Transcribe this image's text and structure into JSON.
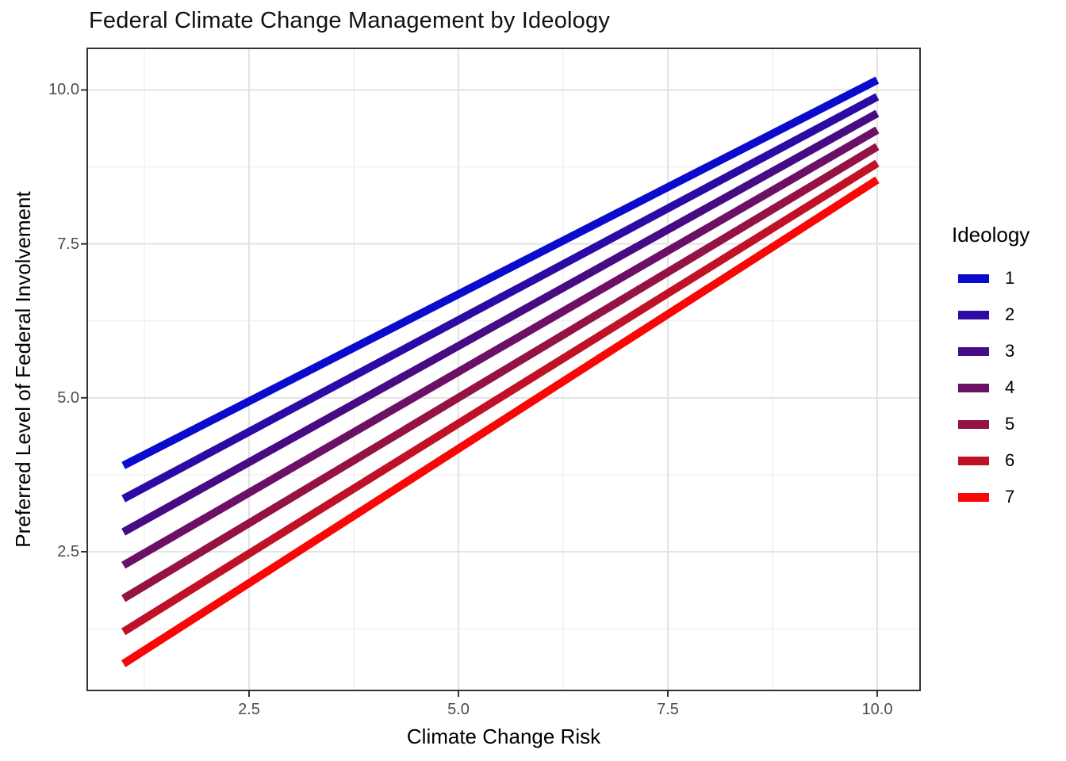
{
  "chart_data": {
    "type": "line",
    "title": "Federal Climate Change Management by Ideology",
    "xlabel": "Climate Change Risk",
    "ylabel": "Preferred Level of Federal Involvement",
    "xlim": [
      0.55,
      10.51
    ],
    "ylim": [
      0.25,
      10.68
    ],
    "grid": true,
    "x_ticks": [
      {
        "value": 2.5,
        "label": "2.5"
      },
      {
        "value": 5.0,
        "label": "5.0"
      },
      {
        "value": 7.5,
        "label": "7.5"
      },
      {
        "value": 10.0,
        "label": "10.0"
      }
    ],
    "y_ticks": [
      {
        "value": 2.5,
        "label": "2.5"
      },
      {
        "value": 5.0,
        "label": "5.0"
      },
      {
        "value": 7.5,
        "label": "7.5"
      },
      {
        "value": 10.0,
        "label": "10.0"
      }
    ],
    "x_minor_ticks": [
      1.25,
      3.75,
      6.25,
      8.75
    ],
    "y_minor_ticks": [
      1.25,
      3.75,
      6.25,
      8.75
    ],
    "legend": {
      "title": "Ideology",
      "position": "right"
    },
    "series": [
      {
        "name": "1",
        "color": "#0B0BCE",
        "x": [
          1,
          10
        ],
        "y": [
          3.9,
          10.16
        ]
      },
      {
        "name": "2",
        "color": "#2B0BA4",
        "x": [
          1,
          10
        ],
        "y": [
          3.36,
          9.89
        ]
      },
      {
        "name": "3",
        "color": "#470B84",
        "x": [
          1,
          10
        ],
        "y": [
          2.82,
          9.62
        ]
      },
      {
        "name": "4",
        "color": "#6C1065",
        "x": [
          1,
          10
        ],
        "y": [
          2.28,
          9.35
        ]
      },
      {
        "name": "5",
        "color": "#951245",
        "x": [
          1,
          10
        ],
        "y": [
          1.74,
          9.08
        ]
      },
      {
        "name": "6",
        "color": "#C11126",
        "x": [
          1,
          10
        ],
        "y": [
          1.2,
          8.81
        ]
      },
      {
        "name": "7",
        "color": "#F90606",
        "x": [
          1,
          10
        ],
        "y": [
          0.68,
          8.54
        ]
      }
    ],
    "style": {
      "grid_major_color": "#E3E3E3",
      "grid_minor_color": "#EBEBEB",
      "panel_border_color": "#333333",
      "tick_color": "#333333",
      "tick_label_color": "#4d4d4d",
      "line_width": 10
    }
  }
}
